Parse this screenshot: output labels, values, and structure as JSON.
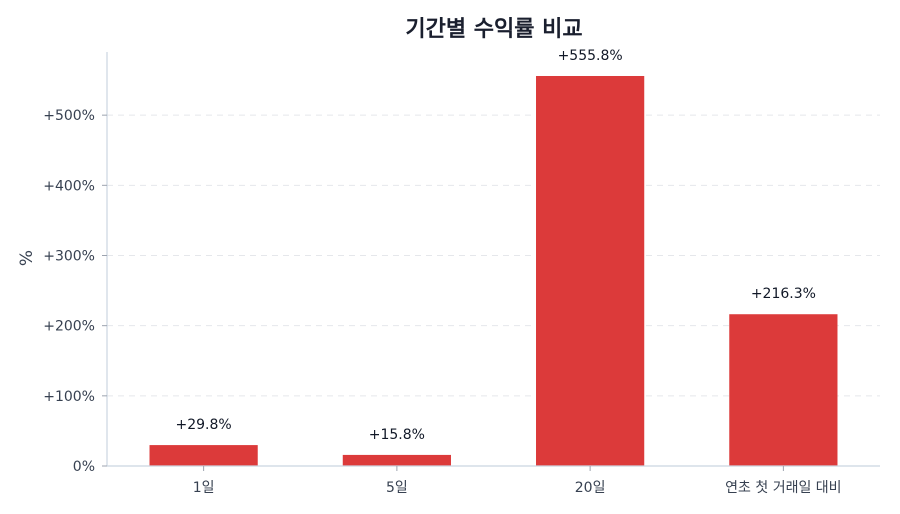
{
  "chart_data": {
    "type": "bar",
    "title": "기간별 수익률 비교",
    "ylabel": "%",
    "xlabel": "",
    "categories": [
      "1일",
      "5일",
      "20일",
      "연초 첫 거래일 대비"
    ],
    "values": [
      29.8,
      15.8,
      555.8,
      216.3
    ],
    "data_labels": [
      "+29.8%",
      "+15.8%",
      "+555.8%",
      "+216.3%"
    ],
    "ylim": [
      0,
      590
    ],
    "yticks": [
      0,
      100,
      200,
      300,
      400,
      500
    ],
    "ytick_labels": [
      "0%",
      "+100%",
      "+200%",
      "+300%",
      "+400%",
      "+500%"
    ],
    "grid": true,
    "bar_color": "#dc3a3a"
  }
}
